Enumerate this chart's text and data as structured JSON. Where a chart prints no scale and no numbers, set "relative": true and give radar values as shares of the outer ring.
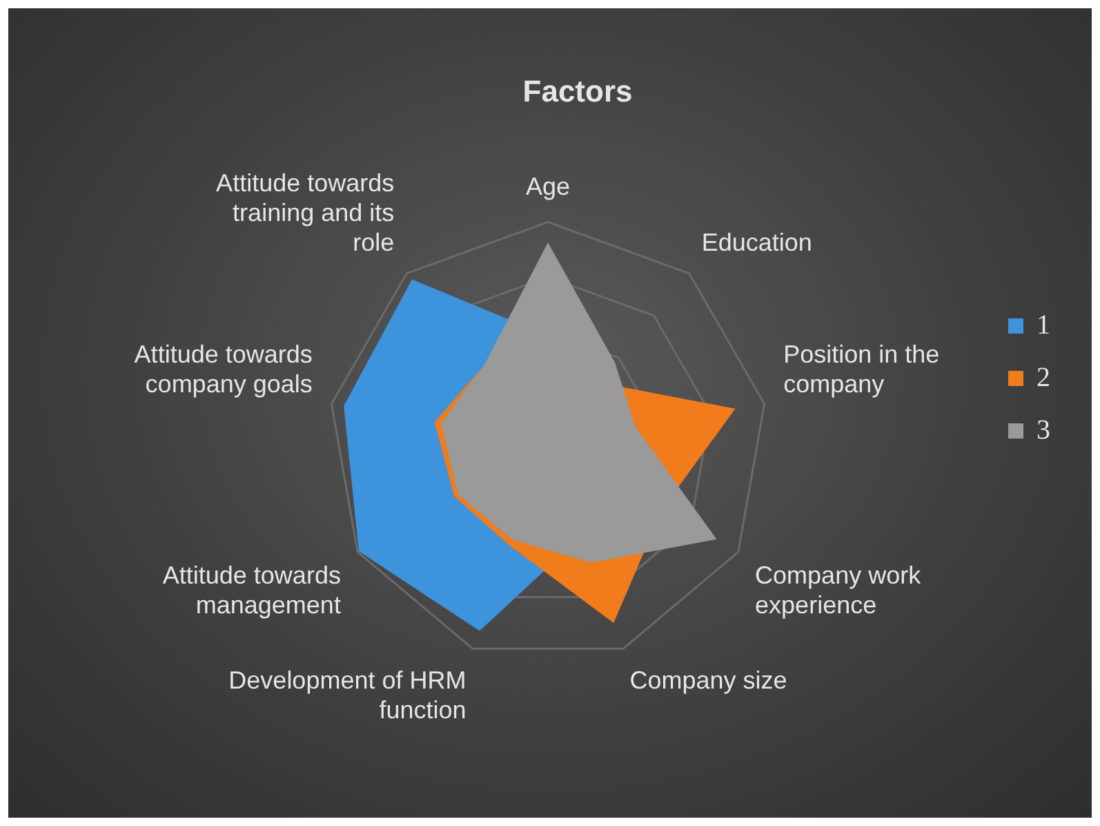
{
  "chart_data": {
    "type": "radar",
    "title": "Factors",
    "relative": true,
    "categories": [
      "Age",
      "Education",
      "Position in the company",
      "Company work experience",
      "Company size",
      "Development of HRM function",
      "Attitude towards management",
      "Attitude towards company goals",
      "Attitude towards training and its role"
    ],
    "series": [
      {
        "name": "1",
        "color": "#3d93dc",
        "values": [
          0.48,
          0.3,
          0.25,
          0.3,
          0.45,
          0.91,
          0.99,
          0.94,
          0.96
        ]
      },
      {
        "name": "2",
        "color": "#f07c1c",
        "values": [
          0.4,
          0.35,
          0.86,
          0.6,
          0.87,
          0.5,
          0.49,
          0.52,
          0.45
        ]
      },
      {
        "name": "3",
        "color": "#9a9a9a",
        "values": [
          0.9,
          0.47,
          0.4,
          0.88,
          0.58,
          0.47,
          0.47,
          0.49,
          0.45
        ]
      }
    ],
    "grid": true,
    "legend": "right"
  }
}
